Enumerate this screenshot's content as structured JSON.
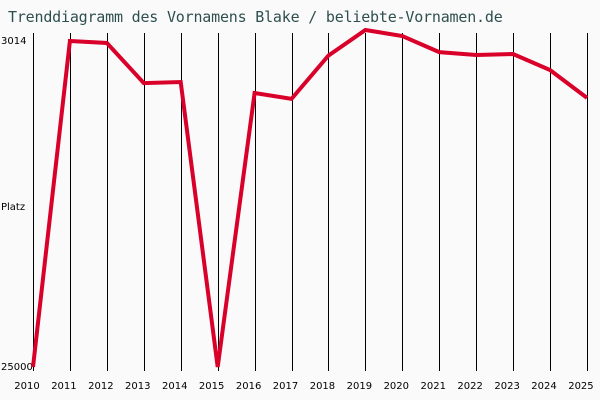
{
  "title": "Trenddiagramm des Vornamens Blake / beliebte-Vornamen.de",
  "y_axis": {
    "top_label": "3014",
    "middle_label": "Platz",
    "bottom_label": "25000"
  },
  "colors": {
    "line": "#d9002a",
    "grid": "#000000",
    "background": "#fafafa",
    "title": "#2f4f4f"
  },
  "chart_data": {
    "type": "line",
    "title": "Trenddiagramm des Vornamens Blake / beliebte-Vornamen.de",
    "xlabel": "",
    "ylabel": "Platz",
    "ylim": [
      25000,
      3014
    ],
    "y_inverted": true,
    "grid": "vertical",
    "categories": [
      "2010",
      "2011",
      "2012",
      "2013",
      "2014",
      "2015",
      "2016",
      "2017",
      "2018",
      "2019",
      "2020",
      "2021",
      "2022",
      "2023",
      "2024",
      "2025"
    ],
    "series": [
      {
        "name": "Blake",
        "values": [
          25000,
          3014,
          3150,
          5850,
          5780,
          25000,
          6520,
          6920,
          4000,
          2270,
          2680,
          3760,
          3960,
          3890,
          4970,
          6850
        ]
      }
    ]
  }
}
